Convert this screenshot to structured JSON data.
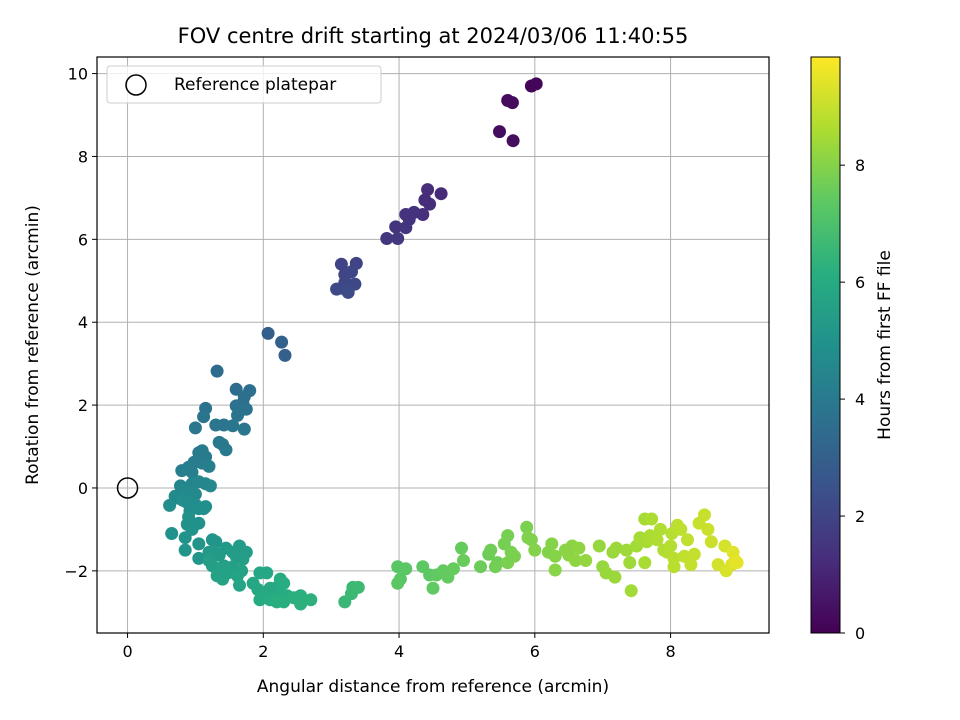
{
  "chart_data": {
    "type": "scatter",
    "title": "FOV centre drift starting at 2024/03/06 11:40:55",
    "xlabel": "Angular distance from reference (arcmin)",
    "ylabel": "Rotation from reference (arcmin)",
    "xlim": [
      -0.45,
      9.45
    ],
    "ylim": [
      -3.5,
      10.4
    ],
    "xticks": [
      0,
      2,
      4,
      6,
      8
    ],
    "yticks": [
      -2,
      0,
      2,
      4,
      6,
      8,
      10
    ],
    "grid": true,
    "colormap": "viridis",
    "colorbar": {
      "label": "Hours from first FF file",
      "range": [
        0,
        9.85
      ],
      "ticks": [
        0,
        2,
        4,
        6,
        8
      ]
    },
    "legend": {
      "placement": "top-left",
      "entries": [
        "Reference platepar"
      ]
    },
    "reference_point": {
      "x": 0,
      "y": 0
    },
    "series": [
      {
        "points": [
          [
            5.95,
            9.7,
            0.1
          ],
          [
            6.02,
            9.75,
            0.15
          ],
          [
            5.6,
            9.35,
            0.25
          ],
          [
            5.67,
            9.3,
            0.3
          ],
          [
            5.48,
            8.6,
            0.35
          ],
          [
            5.68,
            8.38,
            0.4
          ],
          [
            4.62,
            7.1,
            1.2
          ],
          [
            4.42,
            7.2,
            1.25
          ],
          [
            4.38,
            6.95,
            1.3
          ],
          [
            4.45,
            6.85,
            1.3
          ],
          [
            4.35,
            6.6,
            1.35
          ],
          [
            4.22,
            6.65,
            1.4
          ],
          [
            4.1,
            6.6,
            1.45
          ],
          [
            4.15,
            6.48,
            1.45
          ],
          [
            3.95,
            6.3,
            1.5
          ],
          [
            4.1,
            6.28,
            1.55
          ],
          [
            3.82,
            6.02,
            1.6
          ],
          [
            3.98,
            6.02,
            1.6
          ],
          [
            3.15,
            5.4,
            2.0
          ],
          [
            3.37,
            5.42,
            2.0
          ],
          [
            3.2,
            5.15,
            2.05
          ],
          [
            3.3,
            5.22,
            2.1
          ],
          [
            3.2,
            4.95,
            2.1
          ],
          [
            3.28,
            4.9,
            2.15
          ],
          [
            3.35,
            4.92,
            2.15
          ],
          [
            3.08,
            4.8,
            2.2
          ],
          [
            3.15,
            4.82,
            2.2
          ],
          [
            3.25,
            4.72,
            2.25
          ],
          [
            2.07,
            3.73,
            3.0
          ],
          [
            2.27,
            3.52,
            3.05
          ],
          [
            2.32,
            3.2,
            3.05
          ],
          [
            1.32,
            2.82,
            3.5
          ],
          [
            1.6,
            2.38,
            3.55
          ],
          [
            1.8,
            2.35,
            3.6
          ],
          [
            1.72,
            2.2,
            3.65
          ],
          [
            1.7,
            2.05,
            3.65
          ],
          [
            1.6,
            1.98,
            3.7
          ],
          [
            1.65,
            1.85,
            3.7
          ],
          [
            1.75,
            1.9,
            3.75
          ],
          [
            1.15,
            1.92,
            3.75
          ],
          [
            1.62,
            1.75,
            3.8
          ],
          [
            1.12,
            1.72,
            3.8
          ],
          [
            1.3,
            1.52,
            3.85
          ],
          [
            1.42,
            1.52,
            3.85
          ],
          [
            1.55,
            1.5,
            3.9
          ],
          [
            1.72,
            1.42,
            3.9
          ],
          [
            1.0,
            1.45,
            3.95
          ],
          [
            1.4,
            1.05,
            4.0
          ],
          [
            1.35,
            1.1,
            4.0
          ],
          [
            1.45,
            0.92,
            4.05
          ],
          [
            1.1,
            0.9,
            4.05
          ],
          [
            1.05,
            0.85,
            4.1
          ],
          [
            1.15,
            0.75,
            4.1
          ],
          [
            0.98,
            0.62,
            4.15
          ],
          [
            1.1,
            0.6,
            4.15
          ],
          [
            0.9,
            0.5,
            4.2
          ],
          [
            0.8,
            0.42,
            4.2
          ],
          [
            1.2,
            0.52,
            4.25
          ],
          [
            0.95,
            0.38,
            4.25
          ],
          [
            0.78,
            0.05,
            4.5
          ],
          [
            0.95,
            0.1,
            4.5
          ],
          [
            1.05,
            0.15,
            4.55
          ],
          [
            1.15,
            0.1,
            4.55
          ],
          [
            1.22,
            0.05,
            4.6
          ],
          [
            0.85,
            -0.05,
            4.6
          ],
          [
            0.9,
            -0.1,
            4.65
          ],
          [
            1.0,
            -0.15,
            4.65
          ],
          [
            0.7,
            -0.2,
            4.7
          ],
          [
            0.75,
            -0.25,
            4.7
          ],
          [
            0.82,
            -0.3,
            4.75
          ],
          [
            0.62,
            -0.42,
            4.75
          ],
          [
            0.88,
            -0.35,
            4.8
          ],
          [
            1.0,
            -0.4,
            4.8
          ],
          [
            1.15,
            -0.45,
            4.85
          ],
          [
            0.92,
            -0.55,
            4.85
          ],
          [
            1.05,
            -0.5,
            4.9
          ],
          [
            1.12,
            -0.5,
            4.9
          ],
          [
            0.9,
            -0.7,
            4.95
          ],
          [
            1.05,
            -0.85,
            4.95
          ],
          [
            0.88,
            -0.88,
            5.0
          ],
          [
            0.65,
            -1.1,
            5.0
          ],
          [
            0.95,
            -1.0,
            5.05
          ],
          [
            0.85,
            -1.2,
            5.05
          ],
          [
            1.05,
            -1.35,
            5.1
          ],
          [
            1.25,
            -1.25,
            5.1
          ],
          [
            1.3,
            -1.3,
            5.15
          ],
          [
            0.85,
            -1.5,
            5.15
          ],
          [
            1.05,
            -1.7,
            5.2
          ],
          [
            1.2,
            -1.55,
            5.25
          ],
          [
            1.28,
            -1.55,
            5.3
          ],
          [
            1.45,
            -1.45,
            5.35
          ],
          [
            1.35,
            -1.62,
            5.35
          ],
          [
            1.55,
            -1.55,
            5.4
          ],
          [
            1.65,
            -1.4,
            5.4
          ],
          [
            1.6,
            -1.65,
            5.45
          ],
          [
            1.75,
            -1.55,
            5.45
          ],
          [
            1.7,
            -1.72,
            5.5
          ],
          [
            1.2,
            -1.75,
            5.5
          ],
          [
            1.25,
            -1.88,
            5.55
          ],
          [
            1.42,
            -1.88,
            5.55
          ],
          [
            1.55,
            -1.9,
            5.6
          ],
          [
            1.35,
            -1.95,
            5.6
          ],
          [
            1.48,
            -2.05,
            5.65
          ],
          [
            1.68,
            -2.0,
            5.65
          ],
          [
            1.32,
            -2.12,
            5.7
          ],
          [
            1.4,
            -2.2,
            5.7
          ],
          [
            1.62,
            -2.12,
            5.75
          ],
          [
            1.65,
            -2.35,
            5.8
          ],
          [
            1.85,
            -2.3,
            5.85
          ],
          [
            1.95,
            -2.05,
            5.85
          ],
          [
            2.05,
            -2.05,
            5.9
          ],
          [
            1.92,
            -2.45,
            5.9
          ],
          [
            2.1,
            -2.42,
            5.95
          ],
          [
            2.2,
            -2.4,
            5.95
          ],
          [
            2.0,
            -2.55,
            6.0
          ],
          [
            2.12,
            -2.6,
            6.0
          ],
          [
            2.25,
            -2.55,
            6.05
          ],
          [
            1.95,
            -2.7,
            6.05
          ],
          [
            2.1,
            -2.7,
            6.1
          ],
          [
            2.25,
            -2.2,
            6.1
          ],
          [
            2.3,
            -2.3,
            6.15
          ],
          [
            2.35,
            -2.6,
            6.15
          ],
          [
            2.2,
            -2.75,
            6.2
          ],
          [
            2.3,
            -2.75,
            6.2
          ],
          [
            2.45,
            -2.65,
            6.25
          ],
          [
            2.55,
            -2.6,
            6.25
          ],
          [
            2.55,
            -2.8,
            6.3
          ],
          [
            2.7,
            -2.7,
            6.3
          ],
          [
            3.2,
            -2.75,
            6.6
          ],
          [
            3.3,
            -2.55,
            6.65
          ],
          [
            3.32,
            -2.4,
            6.65
          ],
          [
            3.4,
            -2.4,
            6.7
          ],
          [
            3.98,
            -1.9,
            7.3
          ],
          [
            4.02,
            -2.2,
            7.3
          ],
          [
            4.1,
            -1.95,
            7.35
          ],
          [
            3.98,
            -2.3,
            7.35
          ],
          [
            4.35,
            -1.9,
            7.4
          ],
          [
            4.45,
            -2.1,
            7.4
          ],
          [
            4.5,
            -2.42,
            7.45
          ],
          [
            4.55,
            -2.1,
            7.45
          ],
          [
            4.65,
            -2.0,
            7.5
          ],
          [
            4.72,
            -2.15,
            7.5
          ],
          [
            4.8,
            -1.95,
            7.55
          ],
          [
            4.92,
            -1.45,
            7.55
          ],
          [
            4.95,
            -1.75,
            7.6
          ],
          [
            5.2,
            -1.9,
            7.65
          ],
          [
            5.32,
            -1.6,
            7.65
          ],
          [
            5.35,
            -1.5,
            7.7
          ],
          [
            5.45,
            -1.8,
            7.7
          ],
          [
            5.42,
            -1.9,
            7.75
          ],
          [
            5.55,
            -1.35,
            7.8
          ],
          [
            5.6,
            -1.15,
            7.8
          ],
          [
            5.6,
            -1.8,
            7.85
          ],
          [
            5.65,
            -1.55,
            7.85
          ],
          [
            5.7,
            -1.65,
            7.9
          ],
          [
            5.88,
            -0.95,
            7.9
          ],
          [
            5.9,
            -1.2,
            7.95
          ],
          [
            5.95,
            -1.25,
            7.95
          ],
          [
            6.0,
            -1.5,
            8.0
          ],
          [
            6.2,
            -1.55,
            8.0
          ],
          [
            6.25,
            -1.35,
            8.05
          ],
          [
            6.3,
            -1.65,
            8.05
          ],
          [
            6.3,
            -1.98,
            8.1
          ],
          [
            6.45,
            -1.5,
            8.1
          ],
          [
            6.5,
            -1.62,
            8.15
          ],
          [
            6.55,
            -1.4,
            8.15
          ],
          [
            6.6,
            -1.75,
            8.2
          ],
          [
            6.65,
            -1.45,
            8.2
          ],
          [
            6.75,
            -1.75,
            8.25
          ],
          [
            6.95,
            -1.4,
            8.3
          ],
          [
            7.0,
            -1.9,
            8.3
          ],
          [
            7.05,
            -2.05,
            8.35
          ],
          [
            7.15,
            -1.55,
            8.35
          ],
          [
            7.2,
            -1.45,
            8.4
          ],
          [
            7.18,
            -2.15,
            8.4
          ],
          [
            7.35,
            -1.5,
            8.45
          ],
          [
            7.4,
            -1.8,
            8.45
          ],
          [
            7.42,
            -2.48,
            8.5
          ],
          [
            7.5,
            -1.4,
            8.5
          ],
          [
            7.55,
            -1.2,
            8.55
          ],
          [
            7.62,
            -0.75,
            8.55
          ],
          [
            7.62,
            -1.8,
            8.6
          ],
          [
            7.65,
            -1.3,
            8.6
          ],
          [
            7.7,
            -1.15,
            8.65
          ],
          [
            7.72,
            -0.75,
            8.65
          ],
          [
            7.8,
            -1.25,
            8.7
          ],
          [
            7.85,
            -1.0,
            8.7
          ],
          [
            7.9,
            -1.5,
            8.75
          ],
          [
            7.95,
            -1.55,
            8.75
          ],
          [
            8.0,
            -1.4,
            8.8
          ],
          [
            8.02,
            -1.1,
            8.8
          ],
          [
            8.05,
            -1.7,
            8.85
          ],
          [
            8.05,
            -1.9,
            8.85
          ],
          [
            8.1,
            -0.9,
            8.9
          ],
          [
            8.15,
            -1.0,
            8.9
          ],
          [
            8.2,
            -1.65,
            8.95
          ],
          [
            8.25,
            -1.25,
            8.95
          ],
          [
            8.3,
            -1.85,
            9.0
          ],
          [
            8.35,
            -1.6,
            9.0
          ],
          [
            8.42,
            -0.85,
            9.05
          ],
          [
            8.5,
            -0.65,
            9.05
          ],
          [
            8.55,
            -1.0,
            9.1
          ],
          [
            8.6,
            -1.3,
            9.1
          ],
          [
            8.7,
            -1.85,
            9.2
          ],
          [
            8.8,
            -1.4,
            9.25
          ],
          [
            8.82,
            -2.0,
            9.3
          ],
          [
            8.9,
            -1.85,
            9.35
          ],
          [
            8.92,
            -1.55,
            9.4
          ],
          [
            8.95,
            -1.75,
            9.45
          ],
          [
            8.98,
            -1.8,
            9.5
          ]
        ]
      }
    ]
  }
}
